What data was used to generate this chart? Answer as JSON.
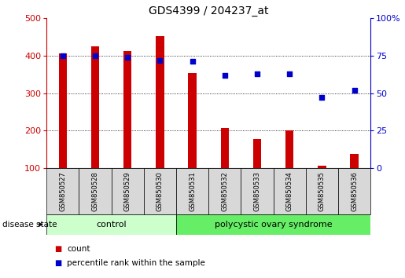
{
  "title": "GDS4399 / 204237_at",
  "samples": [
    "GSM850527",
    "GSM850528",
    "GSM850529",
    "GSM850530",
    "GSM850531",
    "GSM850532",
    "GSM850533",
    "GSM850534",
    "GSM850535",
    "GSM850536"
  ],
  "count_values": [
    405,
    425,
    412,
    452,
    353,
    208,
    178,
    200,
    107,
    138
  ],
  "percentile_values": [
    75,
    75,
    74,
    72,
    71,
    62,
    63,
    63,
    47,
    52
  ],
  "count_color": "#cc0000",
  "percentile_color": "#0000cc",
  "ylim_left": [
    100,
    500
  ],
  "ylim_right": [
    0,
    100
  ],
  "yticks_left": [
    100,
    200,
    300,
    400,
    500
  ],
  "yticks_right": [
    0,
    25,
    50,
    75,
    100
  ],
  "ytick_right_labels": [
    "0",
    "25",
    "50",
    "75",
    "100%"
  ],
  "grid_yticks": [
    200,
    300,
    400
  ],
  "control_indices": [
    0,
    1,
    2,
    3
  ],
  "pcos_indices": [
    4,
    5,
    6,
    7,
    8,
    9
  ],
  "control_label": "control",
  "pcos_label": "polycystic ovary syndrome",
  "disease_state_label": "disease state",
  "control_color": "#ccffcc",
  "pcos_color": "#66ee66",
  "sample_bg_color": "#d8d8d8",
  "legend_count_label": "count",
  "legend_percentile_label": "percentile rank within the sample",
  "bar_width": 0.25
}
